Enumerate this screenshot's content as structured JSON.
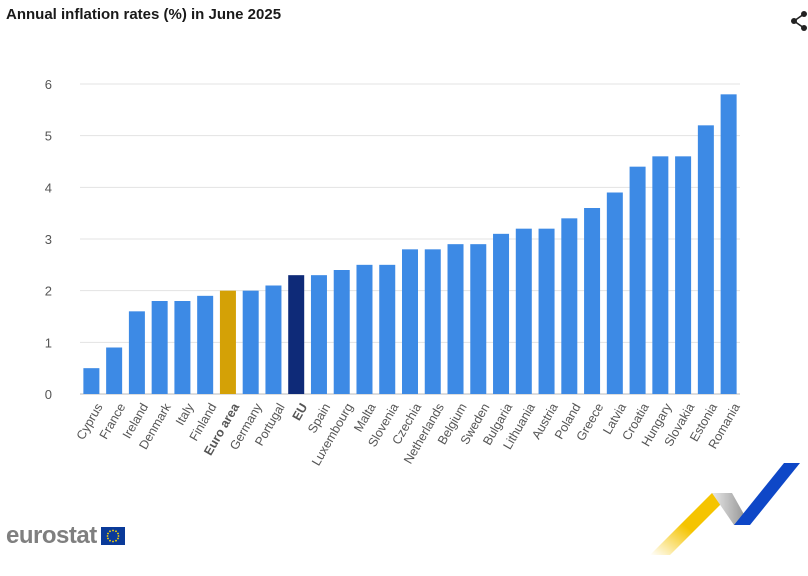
{
  "title": "Annual inflation rates (%) in June 2025",
  "logo": {
    "text": "eurostat"
  },
  "icons": {
    "share": "share-icon",
    "flag": "eu-flag-icon"
  },
  "colors": {
    "default": "#3d8ae5",
    "euro_area": "#d4a106",
    "eu": "#0e2a78",
    "deco_yellow": "#f5c400",
    "deco_blue": "#0e47c7"
  },
  "chart_data": {
    "type": "bar",
    "title": "Annual inflation rates (%) in June 2025",
    "xlabel": "",
    "ylabel": "",
    "ylim": [
      0,
      6
    ],
    "yticks": [
      0,
      1,
      2,
      3,
      4,
      5,
      6
    ],
    "grid": true,
    "categories": [
      "Cyprus",
      "France",
      "Ireland",
      "Denmark",
      "Italy",
      "Finland",
      "Euro area",
      "Germany",
      "Portugal",
      "EU",
      "Spain",
      "Luxembourg",
      "Malta",
      "Slovenia",
      "Czechia",
      "Netherlands",
      "Belgium",
      "Sweden",
      "Bulgaria",
      "Lithuania",
      "Austria",
      "Poland",
      "Greece",
      "Latvia",
      "Croatia",
      "Hungary",
      "Slovakia",
      "Estonia",
      "Romania"
    ],
    "values": [
      0.5,
      0.9,
      1.6,
      1.8,
      1.8,
      1.9,
      2.0,
      2.0,
      2.1,
      2.3,
      2.3,
      2.4,
      2.5,
      2.5,
      2.8,
      2.8,
      2.9,
      2.9,
      3.1,
      3.2,
      3.2,
      3.4,
      3.6,
      3.9,
      4.4,
      4.6,
      4.6,
      5.2,
      5.8
    ],
    "highlight": {
      "Euro area": "euro_area",
      "EU": "eu"
    }
  }
}
